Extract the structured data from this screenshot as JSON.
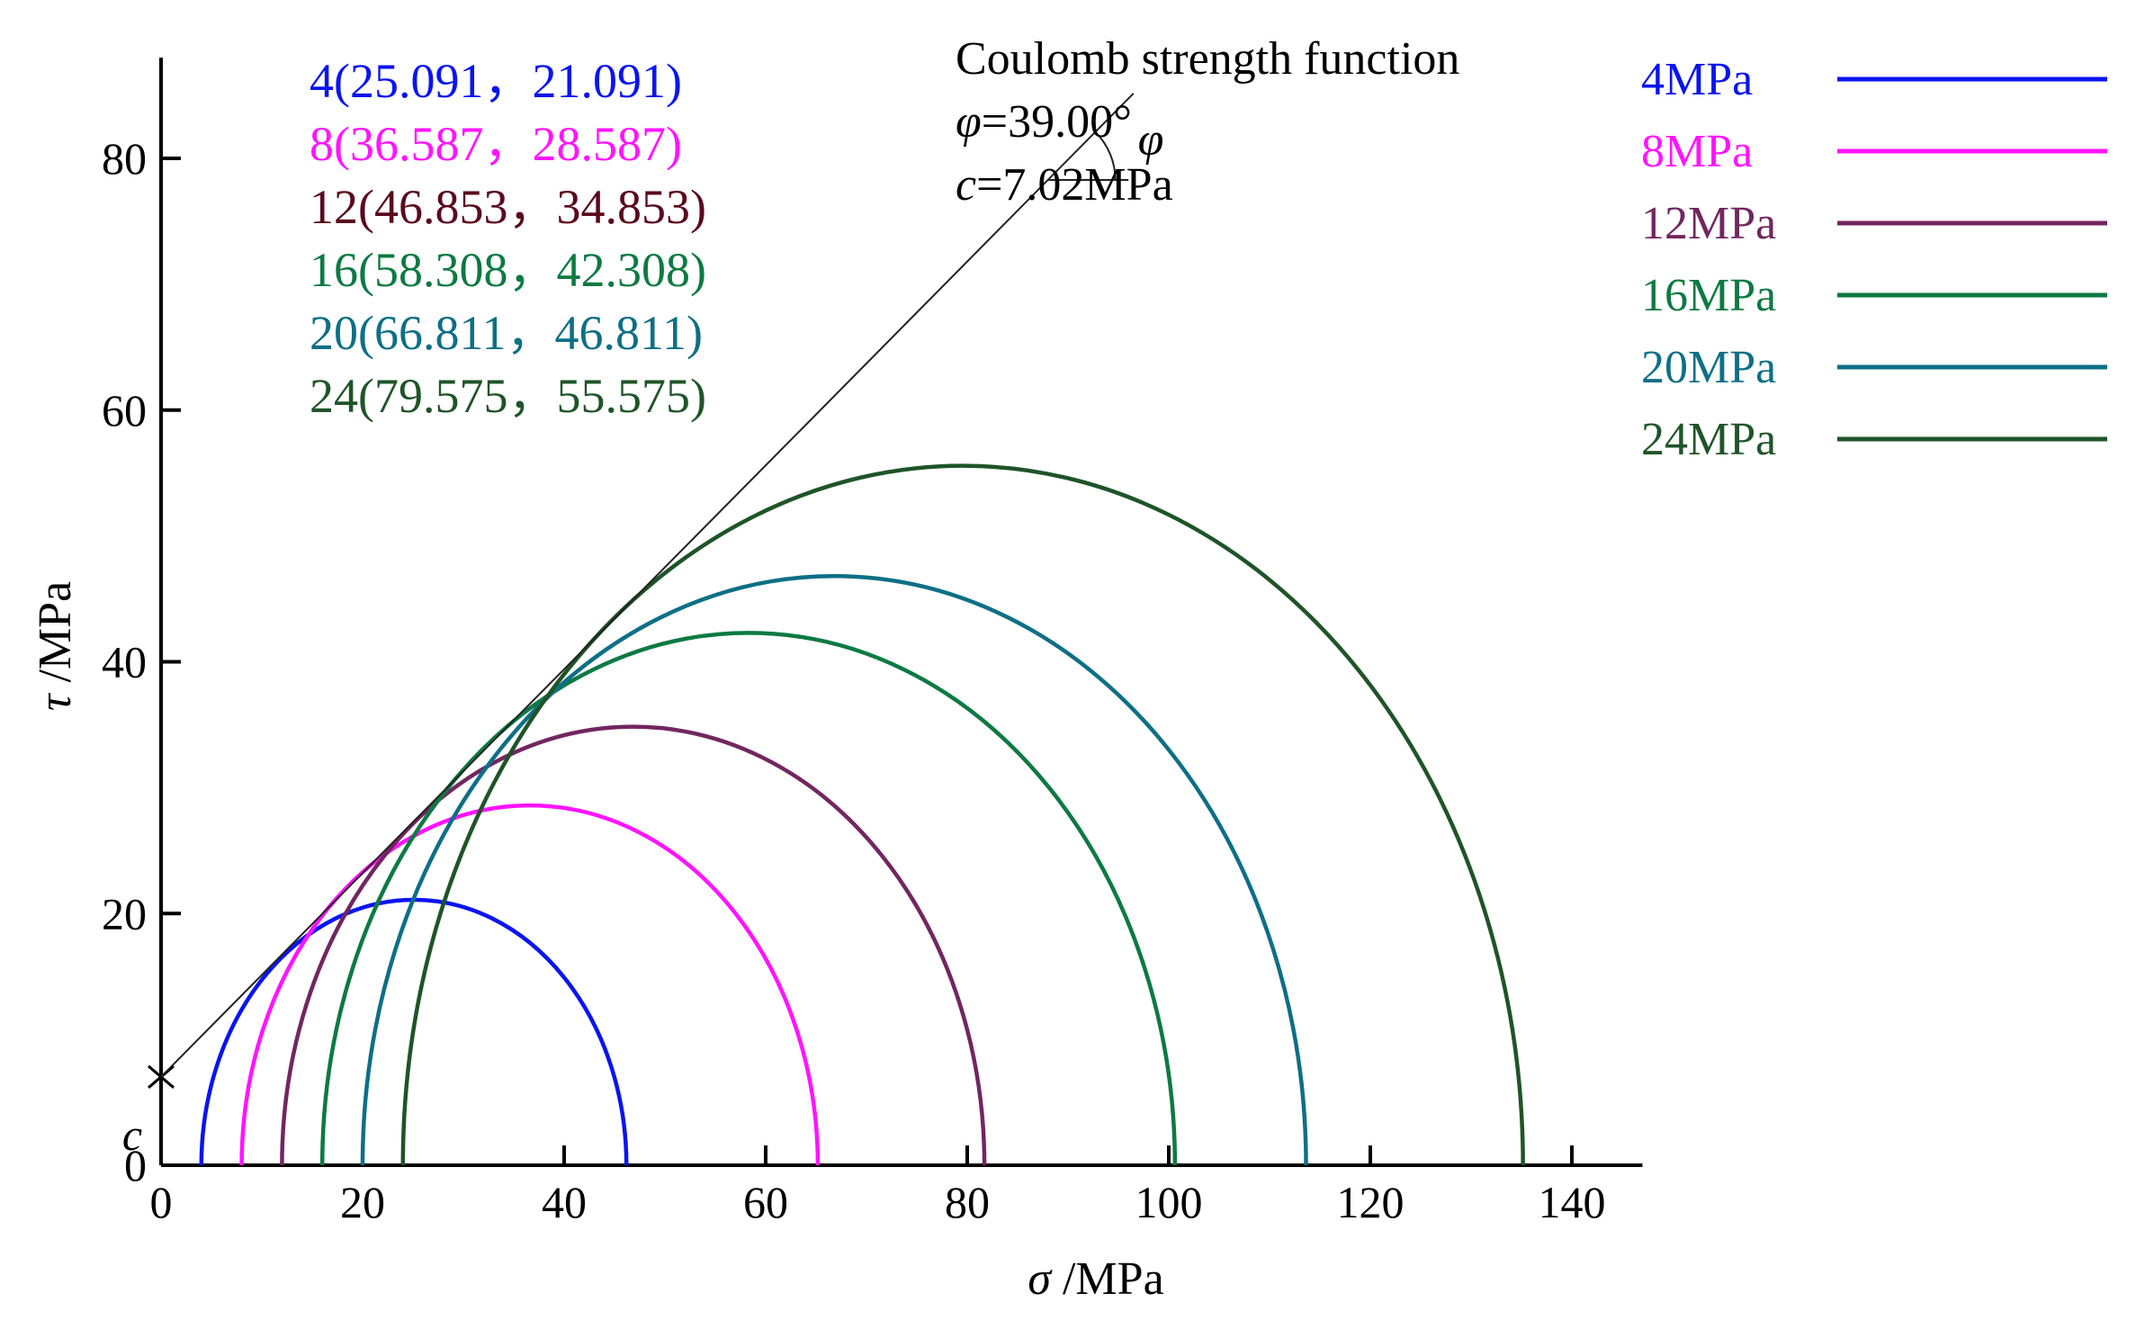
{
  "chart_data": {
    "type": "line",
    "title": "",
    "xlabel": {
      "symbol": "σ",
      "unit": " /MPa"
    },
    "ylabel": {
      "symbol": "τ",
      "unit": " /MPa"
    },
    "xlim": [
      0,
      147
    ],
    "ylim": [
      0,
      88
    ],
    "xticks": [
      0,
      20,
      40,
      60,
      80,
      100,
      120,
      140
    ],
    "yticks": [
      0,
      20,
      40,
      60,
      80
    ],
    "cohesion_marker": {
      "symbol": "c",
      "value": 7.02
    },
    "series": [
      {
        "name": "4MPa",
        "confining": 4,
        "center": 25.091,
        "radius": 21.091,
        "label": "4(25.091，21.091)",
        "color": "#0a14f0"
      },
      {
        "name": "8MPa",
        "confining": 8,
        "center": 36.587,
        "radius": 28.587,
        "label": "8(36.587，28.587)",
        "color": "#ff14ff"
      },
      {
        "name": "12MPa",
        "confining": 12,
        "center": 46.853,
        "radius": 34.853,
        "label": "12(46.853，34.853)",
        "color": "#722660"
      },
      {
        "name": "16MPa",
        "confining": 16,
        "center": 58.308,
        "radius": 42.308,
        "label": "16(58.308，42.308)",
        "color": "#0d7a42"
      },
      {
        "name": "20MPa",
        "confining": 20,
        "center": 66.811,
        "radius": 46.811,
        "label": "20(66.811，46.811)",
        "color": "#0e6f86"
      },
      {
        "name": "24MPa",
        "confining": 24,
        "center": 79.575,
        "radius": 55.575,
        "label": "24(79.575，55.575)",
        "color": "#1f5428"
      }
    ],
    "envelope": {
      "title": "Coulomb strength function",
      "phi_symbol": "φ",
      "phi_value": "=39.00°",
      "c_symbol": "c",
      "c_value": "=7.02MPa",
      "phi_deg": 39.0,
      "c": 7.02,
      "x_end": 96.5,
      "angle_label": "φ"
    },
    "annotation_colors": [
      "#0a14f0",
      "#ff14ff",
      "#5a0a1e",
      "#0d7a42",
      "#0e6f86",
      "#1f5428"
    ],
    "legend_colors": [
      "#0a14f0",
      "#ff14ff",
      "#722660",
      "#0d7a42",
      "#0e6f86",
      "#1f5428"
    ]
  }
}
